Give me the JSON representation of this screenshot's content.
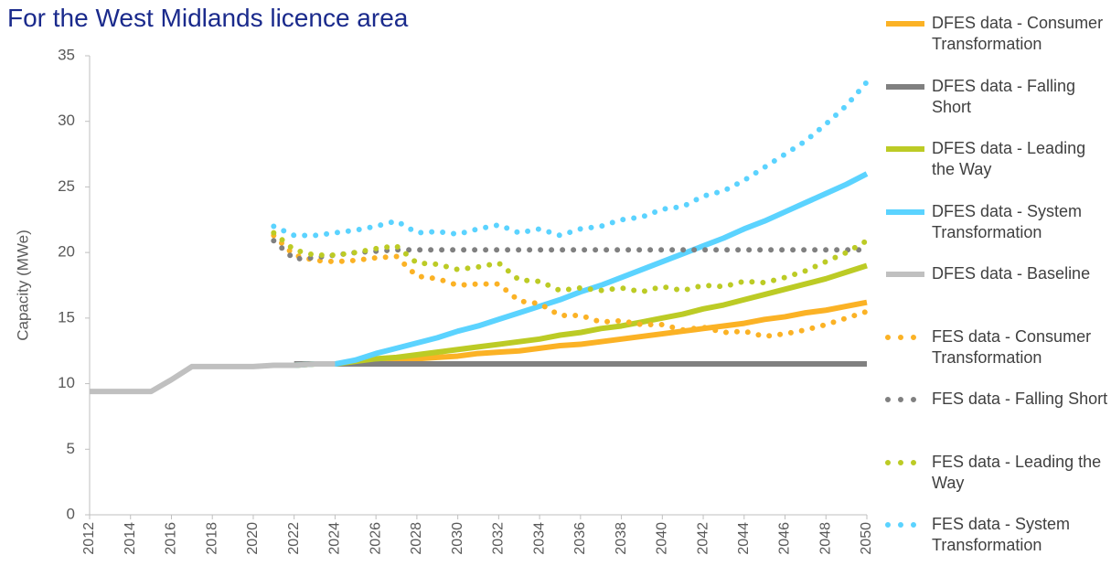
{
  "chart_data": {
    "type": "line",
    "subtitle": "For the West Midlands licence area",
    "y_label": "Capacity (MWe)",
    "x": [
      2012,
      2013,
      2014,
      2015,
      2016,
      2017,
      2018,
      2019,
      2020,
      2021,
      2022,
      2023,
      2024,
      2025,
      2026,
      2027,
      2028,
      2029,
      2030,
      2031,
      2032,
      2033,
      2034,
      2035,
      2036,
      2037,
      2038,
      2039,
      2040,
      2041,
      2042,
      2043,
      2044,
      2045,
      2046,
      2047,
      2048,
      2049,
      2050
    ],
    "xlim": [
      2012,
      2050
    ],
    "xticks": [
      2012,
      2014,
      2016,
      2018,
      2020,
      2022,
      2024,
      2026,
      2028,
      2030,
      2032,
      2034,
      2036,
      2038,
      2040,
      2042,
      2044,
      2046,
      2048,
      2050
    ],
    "ylim": [
      0,
      35
    ],
    "yticks": [
      0,
      5,
      10,
      15,
      20,
      25,
      30,
      35
    ],
    "series": [
      {
        "name": "DFES data - Consumer Transformation",
        "color": "#FBB225",
        "dash": "solid",
        "values": [
          null,
          null,
          null,
          null,
          null,
          null,
          null,
          null,
          null,
          null,
          11.4,
          11.5,
          11.5,
          11.6,
          11.7,
          11.8,
          11.9,
          12.0,
          12.1,
          12.3,
          12.4,
          12.5,
          12.7,
          12.9,
          13.0,
          13.2,
          13.4,
          13.6,
          13.8,
          14.0,
          14.2,
          14.4,
          14.6,
          14.9,
          15.1,
          15.4,
          15.6,
          15.9,
          16.2
        ]
      },
      {
        "name": "DFES data - Falling Short",
        "color": "#808080",
        "dash": "solid",
        "values": [
          null,
          null,
          null,
          null,
          null,
          null,
          null,
          null,
          null,
          null,
          11.5,
          11.5,
          11.5,
          11.5,
          11.5,
          11.5,
          11.5,
          11.5,
          11.5,
          11.5,
          11.5,
          11.5,
          11.5,
          11.5,
          11.5,
          11.5,
          11.5,
          11.5,
          11.5,
          11.5,
          11.5,
          11.5,
          11.5,
          11.5,
          11.5,
          11.5,
          11.5,
          11.5,
          11.5
        ]
      },
      {
        "name": "DFES data - Leading the Way",
        "color": "#BCCB25",
        "dash": "solid",
        "values": [
          null,
          null,
          null,
          null,
          null,
          null,
          null,
          null,
          null,
          null,
          11.4,
          11.5,
          11.5,
          11.7,
          11.9,
          12.0,
          12.2,
          12.4,
          12.6,
          12.8,
          13.0,
          13.2,
          13.4,
          13.7,
          13.9,
          14.2,
          14.4,
          14.7,
          15.0,
          15.3,
          15.7,
          16.0,
          16.4,
          16.8,
          17.2,
          17.6,
          18.0,
          18.5,
          19.0
        ]
      },
      {
        "name": "DFES data - System Transformation",
        "color": "#5BD3FF",
        "dash": "solid",
        "values": [
          null,
          null,
          null,
          null,
          null,
          null,
          null,
          null,
          null,
          null,
          11.4,
          11.5,
          11.5,
          11.8,
          12.3,
          12.7,
          13.1,
          13.5,
          14.0,
          14.4,
          14.9,
          15.4,
          15.9,
          16.4,
          17.0,
          17.5,
          18.1,
          18.7,
          19.3,
          19.9,
          20.5,
          21.1,
          21.8,
          22.4,
          23.1,
          23.8,
          24.5,
          25.2,
          26.0
        ]
      },
      {
        "name": "DFES data - Baseline",
        "color": "#C0C0C0",
        "dash": "solid",
        "values": [
          9.4,
          9.4,
          9.4,
          9.4,
          10.3,
          11.3,
          11.3,
          11.3,
          11.3,
          11.4,
          11.4,
          11.5,
          11.5,
          null,
          null,
          null,
          null,
          null,
          null,
          null,
          null,
          null,
          null,
          null,
          null,
          null,
          null,
          null,
          null,
          null,
          null,
          null,
          null,
          null,
          null,
          null,
          null,
          null,
          null
        ]
      },
      {
        "name": "FES data - Consumer Transformation",
        "color": "#FBB225",
        "dash": "dotted",
        "values": [
          null,
          null,
          null,
          null,
          null,
          null,
          null,
          null,
          null,
          21.3,
          19.8,
          19.4,
          19.3,
          19.4,
          19.6,
          19.7,
          18.2,
          18.0,
          17.5,
          17.6,
          17.6,
          16.3,
          16.1,
          15.2,
          15.2,
          14.7,
          14.8,
          14.5,
          14.5,
          14.1,
          14.3,
          13.9,
          14.0,
          13.6,
          13.8,
          14.1,
          14.5,
          15.0,
          15.5
        ]
      },
      {
        "name": "FES data - Falling Short",
        "color": "#808080",
        "dash": "dotted",
        "values": [
          null,
          null,
          null,
          null,
          null,
          null,
          null,
          null,
          null,
          20.9,
          19.5,
          19.6,
          19.8,
          20.0,
          20.1,
          20.2,
          20.2,
          20.2,
          20.2,
          20.2,
          20.2,
          20.2,
          20.2,
          20.2,
          20.2,
          20.2,
          20.2,
          20.2,
          20.2,
          20.2,
          20.2,
          20.2,
          20.2,
          20.2,
          20.2,
          20.2,
          20.2,
          20.2,
          20.2
        ]
      },
      {
        "name": "FES data - Leading the Way",
        "color": "#BCCB25",
        "dash": "dotted",
        "values": [
          null,
          null,
          null,
          null,
          null,
          null,
          null,
          null,
          null,
          21.5,
          20.2,
          19.8,
          19.8,
          20.0,
          20.3,
          20.5,
          19.2,
          19.1,
          18.7,
          18.9,
          19.2,
          17.9,
          17.8,
          17.1,
          17.3,
          17.1,
          17.3,
          17.0,
          17.4,
          17.1,
          17.5,
          17.4,
          17.8,
          17.7,
          18.1,
          18.6,
          19.3,
          20.0,
          20.9
        ]
      },
      {
        "name": "FES data - System Transformation",
        "color": "#5BD3FF",
        "dash": "dotted",
        "values": [
          null,
          null,
          null,
          null,
          null,
          null,
          null,
          null,
          null,
          22.0,
          21.3,
          21.3,
          21.5,
          21.7,
          22.0,
          22.4,
          21.5,
          21.6,
          21.4,
          21.8,
          22.1,
          21.5,
          21.8,
          21.3,
          21.8,
          22.0,
          22.5,
          22.7,
          23.3,
          23.5,
          24.3,
          24.7,
          25.5,
          26.5,
          27.5,
          28.5,
          29.8,
          31.2,
          33.0
        ]
      }
    ]
  }
}
